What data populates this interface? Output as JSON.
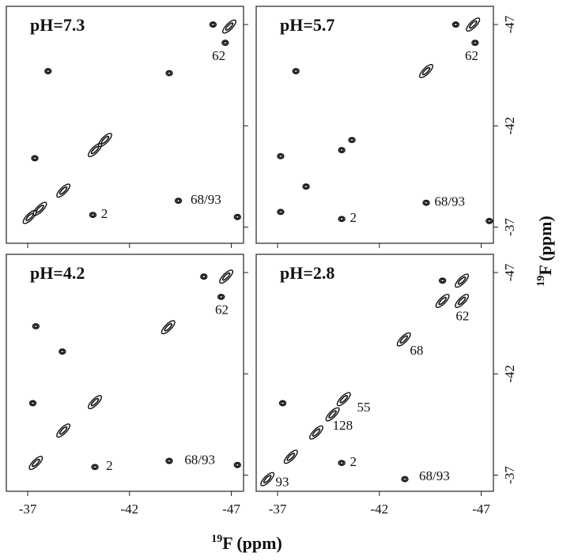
{
  "chart_data": {
    "type": "contour",
    "x_label_sup": "19",
    "x_label": "F (ppm)",
    "y_label_sup": "19",
    "y_label": "F (ppm)",
    "xlim": [
      -35.95,
      -47.6
    ],
    "ylim": [
      -36.2,
      -47.9
    ],
    "xticks": [
      -37,
      -42,
      -47
    ],
    "yticks": [
      -37,
      -42,
      -47
    ],
    "color": "#111111",
    "panels": [
      {
        "title": "pH=7.3",
        "peaks": [
          {
            "x": -46.9,
            "y": -46.9
          },
          {
            "x": -46.1,
            "y": -47.0
          },
          {
            "x": -46.7,
            "y": -46.1
          },
          {
            "x": -38.0,
            "y": -44.7
          },
          {
            "x": -43.95,
            "y": -44.6
          },
          {
            "x": -40.8,
            "y": -41.3
          },
          {
            "x": -40.3,
            "y": -40.8
          },
          {
            "x": -37.35,
            "y": -40.4
          },
          {
            "x": -38.75,
            "y": -38.8
          },
          {
            "x": -37.6,
            "y": -37.9
          },
          {
            "x": -37.1,
            "y": -37.5
          },
          {
            "x": -40.2,
            "y": -37.6
          },
          {
            "x": -44.4,
            "y": -38.3
          },
          {
            "x": -47.3,
            "y": -37.5
          }
        ],
        "annotations": [
          {
            "text": "62",
            "x": -46.05,
            "y": -45.4
          },
          {
            "text": "2",
            "x": -40.6,
            "y": -37.6
          },
          {
            "text": "68/93",
            "x": -45.0,
            "y": -38.3
          }
        ]
      },
      {
        "title": "pH=5.7",
        "peaks": [
          {
            "x": -46.6,
            "y": -47.0
          },
          {
            "x": -45.75,
            "y": -47.0
          },
          {
            "x": -46.7,
            "y": -46.1
          },
          {
            "x": -37.9,
            "y": -44.7
          },
          {
            "x": -44.3,
            "y": -44.7
          },
          {
            "x": -40.65,
            "y": -41.3
          },
          {
            "x": -40.15,
            "y": -40.8
          },
          {
            "x": -37.15,
            "y": -40.5
          },
          {
            "x": -38.4,
            "y": -39.0
          },
          {
            "x": -37.15,
            "y": -37.75
          },
          {
            "x": -40.15,
            "y": -37.4
          },
          {
            "x": -44.3,
            "y": -38.2
          },
          {
            "x": -47.4,
            "y": -37.3
          }
        ],
        "annotations": [
          {
            "text": "62",
            "x": -46.2,
            "y": -45.4
          },
          {
            "text": "2",
            "x": -40.55,
            "y": -37.4
          },
          {
            "text": "68/93",
            "x": -44.7,
            "y": -38.2
          }
        ]
      },
      {
        "title": "pH=4.2",
        "peaks": [
          {
            "x": -46.75,
            "y": -46.8
          },
          {
            "x": -45.65,
            "y": -46.8
          },
          {
            "x": -46.5,
            "y": -45.8
          },
          {
            "x": -37.4,
            "y": -44.35
          },
          {
            "x": -43.9,
            "y": -44.3
          },
          {
            "x": -38.7,
            "y": -43.1
          },
          {
            "x": -40.3,
            "y": -40.6
          },
          {
            "x": -37.25,
            "y": -40.55
          },
          {
            "x": -38.75,
            "y": -39.2
          },
          {
            "x": -37.4,
            "y": -37.6
          },
          {
            "x": -40.3,
            "y": -37.4
          },
          {
            "x": -43.95,
            "y": -37.7
          },
          {
            "x": -47.3,
            "y": -37.5
          }
        ],
        "annotations": [
          {
            "text": "62",
            "x": -46.2,
            "y": -45.1
          },
          {
            "text": "2",
            "x": -40.85,
            "y": -37.4
          },
          {
            "text": "68/93",
            "x": -44.7,
            "y": -37.7
          }
        ]
      },
      {
        "title": "pH=2.8",
        "peaks": [
          {
            "x": -46.05,
            "y": -46.6
          },
          {
            "x": -45.1,
            "y": -46.6
          },
          {
            "x": -45.1,
            "y": -45.6
          },
          {
            "x": -46.05,
            "y": -45.6
          },
          {
            "x": -43.2,
            "y": -43.7
          },
          {
            "x": -40.25,
            "y": -40.75
          },
          {
            "x": -39.7,
            "y": -40.0
          },
          {
            "x": -37.25,
            "y": -40.55
          },
          {
            "x": -38.9,
            "y": -39.1
          },
          {
            "x": -37.65,
            "y": -37.9
          },
          {
            "x": -40.15,
            "y": -37.6
          },
          {
            "x": -43.25,
            "y": -36.8
          },
          {
            "x": -36.5,
            "y": -36.8
          }
        ],
        "annotations": [
          {
            "text": "62",
            "x": -45.75,
            "y": -44.8
          },
          {
            "text": "68",
            "x": -43.5,
            "y": -43.1
          },
          {
            "text": "55",
            "x": -40.9,
            "y": -40.3
          },
          {
            "text": "128",
            "x": -39.7,
            "y": -39.4
          },
          {
            "text": "2",
            "x": -40.55,
            "y": -37.6
          },
          {
            "text": "68/93",
            "x": -43.95,
            "y": -36.9
          },
          {
            "text": "93",
            "x": -36.9,
            "y": -36.6
          }
        ]
      }
    ]
  }
}
